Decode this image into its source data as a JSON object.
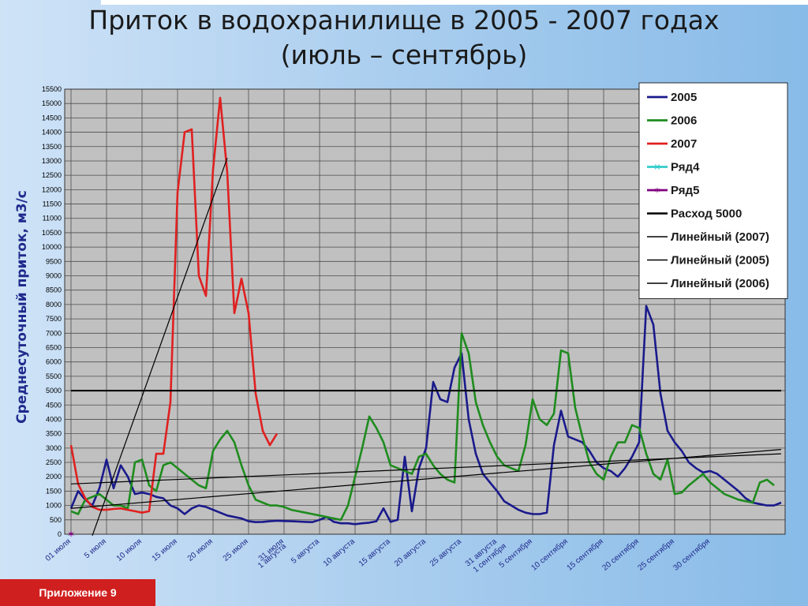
{
  "page": {
    "title_line1": "Приток в водохранилище в 2005 - 2007 годах",
    "title_line2": "(июль – сентябрь)",
    "footer_label": "Приложение 9"
  },
  "colors": {
    "s2005": "#1a1a8c",
    "s2006": "#1e8c1e",
    "s2007": "#e02020",
    "row4": "#33cccc",
    "row5": "#800080",
    "black": "#000000",
    "footer": "#d01f1f"
  },
  "chart_data": {
    "type": "line",
    "title": "",
    "ylabel": "Среднесуточный приток, м3/с",
    "ylim": [
      0,
      15500
    ],
    "ytick_step": 500,
    "x_count": 101,
    "x_tick_step": 5,
    "x_tick_labels": [
      "01 июля",
      "5 июля",
      "10 июля",
      "15 июля",
      "20 июля",
      "25 июля",
      "31 июля",
      "5 августа",
      "10 августа",
      "15 августа",
      "20 августа",
      "25 августа",
      "31 августа",
      "5 сентября",
      "10 сентября",
      "15 сентября",
      "20 сентября",
      "25 сентября",
      "30 сентября"
    ],
    "x_tick_labels_second": [
      "1 августа",
      "1 сентября"
    ],
    "grid": true,
    "legend_position": "top-right",
    "series": [
      {
        "name": "2005",
        "key": "s2005",
        "values": [
          900,
          1500,
          1200,
          1000,
          1600,
          2600,
          1600,
          2400,
          2000,
          1400,
          1450,
          1400,
          1300,
          1250,
          1000,
          900,
          700,
          900,
          1000,
          950,
          850,
          750,
          650,
          600,
          550,
          450,
          420,
          430,
          450,
          470,
          460,
          450,
          440,
          430,
          420,
          500,
          600,
          430,
          380,
          380,
          350,
          380,
          400,
          450,
          900,
          430,
          500,
          2700,
          800,
          2300,
          3000,
          5300,
          4700,
          4600,
          5800,
          6300,
          4000,
          2800,
          2100,
          1800,
          1500,
          1150,
          1000,
          850,
          750,
          700,
          700,
          750,
          3100,
          4300,
          3400,
          3300,
          3200,
          2900,
          2500,
          2300,
          2200,
          2000,
          2300,
          2700,
          3200,
          7950,
          7300,
          4900,
          3600,
          3200,
          2900,
          2500,
          2300,
          2150,
          2200,
          2100,
          1900,
          1700,
          1500,
          1250,
          1100,
          1050,
          1000,
          1000,
          1100
        ]
      },
      {
        "name": "2006",
        "key": "s2006",
        "values": [
          800,
          700,
          1200,
          1300,
          1400,
          1200,
          1000,
          1000,
          900,
          2500,
          2600,
          1700,
          1500,
          2400,
          2500,
          2300,
          2100,
          1900,
          1700,
          1600,
          2900,
          3300,
          3600,
          3200,
          2400,
          1700,
          1200,
          1100,
          1000,
          1000,
          950,
          850,
          800,
          750,
          700,
          650,
          600,
          550,
          500,
          1000,
          2000,
          3000,
          4100,
          3700,
          3200,
          2400,
          2300,
          2200,
          2100,
          2700,
          2800,
          2400,
          2100,
          1900,
          1800,
          7000,
          6300,
          4600,
          3800,
          3200,
          2700,
          2400,
          2300,
          2200,
          3100,
          4700,
          4000,
          3800,
          4200,
          6400,
          6300,
          4400,
          3400,
          2500,
          2100,
          1900,
          2700,
          3200,
          3200,
          3800,
          3700,
          2800,
          2100,
          1900,
          2600,
          1400,
          1450,
          1700,
          1900,
          2100,
          1800,
          1600,
          1400,
          1300,
          1200,
          1150,
          1100,
          1800,
          1900,
          1700
        ]
      },
      {
        "name": "2007",
        "key": "s2007",
        "values": [
          3100,
          1750,
          1250,
          950,
          850,
          850,
          880,
          900,
          850,
          800,
          750,
          800,
          2800,
          2800,
          4600,
          11900,
          14000,
          14100,
          9000,
          8300,
          12700,
          15200,
          12600,
          7700,
          8900,
          7700,
          4900,
          3600,
          3100,
          3500
        ]
      },
      {
        "name": "Ряд4",
        "key": "row4",
        "values": []
      },
      {
        "name": "Ряд5",
        "key": "row5",
        "values": []
      },
      {
        "name": "Расход 5000",
        "key": "black",
        "constant": 5000
      },
      {
        "name": "Линейный (2007)",
        "key": "black",
        "trend": {
          "x0": 3,
          "y0": -50,
          "x1": 22,
          "y1": 13100
        }
      },
      {
        "name": "Линейный (2005)",
        "key": "black",
        "trend": {
          "x0": 0,
          "y0": 900,
          "x1": 100,
          "y1": 2950
        }
      },
      {
        "name": "Линейный (2006)",
        "key": "black",
        "trend": {
          "x0": 0,
          "y0": 1750,
          "x1": 100,
          "y1": 2800
        }
      }
    ]
  }
}
